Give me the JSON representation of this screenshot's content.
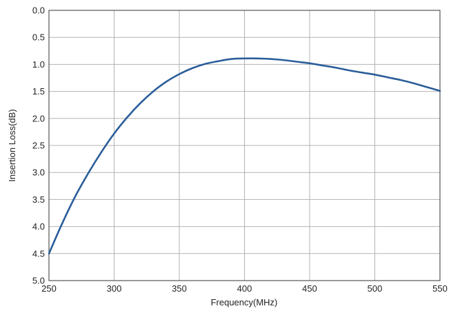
{
  "chart_data": {
    "type": "line",
    "title": "",
    "xlabel": "Frequency(MHz)",
    "ylabel": "Insertion Loss(dB)",
    "xlim": [
      250,
      550
    ],
    "ylim": [
      0.0,
      5.0
    ],
    "y_inverted": true,
    "grid": true,
    "x_ticks": [
      "250",
      "300",
      "350",
      "400",
      "450",
      "500",
      "550"
    ],
    "y_ticks": [
      "0.0",
      "0.5",
      "1.0",
      "1.5",
      "2.0",
      "2.5",
      "3.0",
      "3.5",
      "4.0",
      "4.5",
      "5.0"
    ],
    "line_color": "#2a5d9a",
    "grid_color": "#b3b3b3",
    "series": [
      {
        "x": [
          250,
          260,
          270,
          280,
          290,
          300,
          310,
          320,
          330,
          340,
          350,
          360,
          370,
          380,
          390,
          400,
          410,
          420,
          430,
          440,
          450,
          460,
          470,
          480,
          490,
          500,
          510,
          520,
          530,
          540,
          550
        ],
        "y": [
          4.5,
          3.95,
          3.45,
          3.02,
          2.63,
          2.28,
          1.98,
          1.72,
          1.5,
          1.32,
          1.18,
          1.07,
          0.99,
          0.94,
          0.9,
          0.89,
          0.89,
          0.9,
          0.92,
          0.95,
          0.98,
          1.02,
          1.06,
          1.11,
          1.15,
          1.19,
          1.24,
          1.29,
          1.35,
          1.42,
          1.49
        ]
      }
    ]
  }
}
